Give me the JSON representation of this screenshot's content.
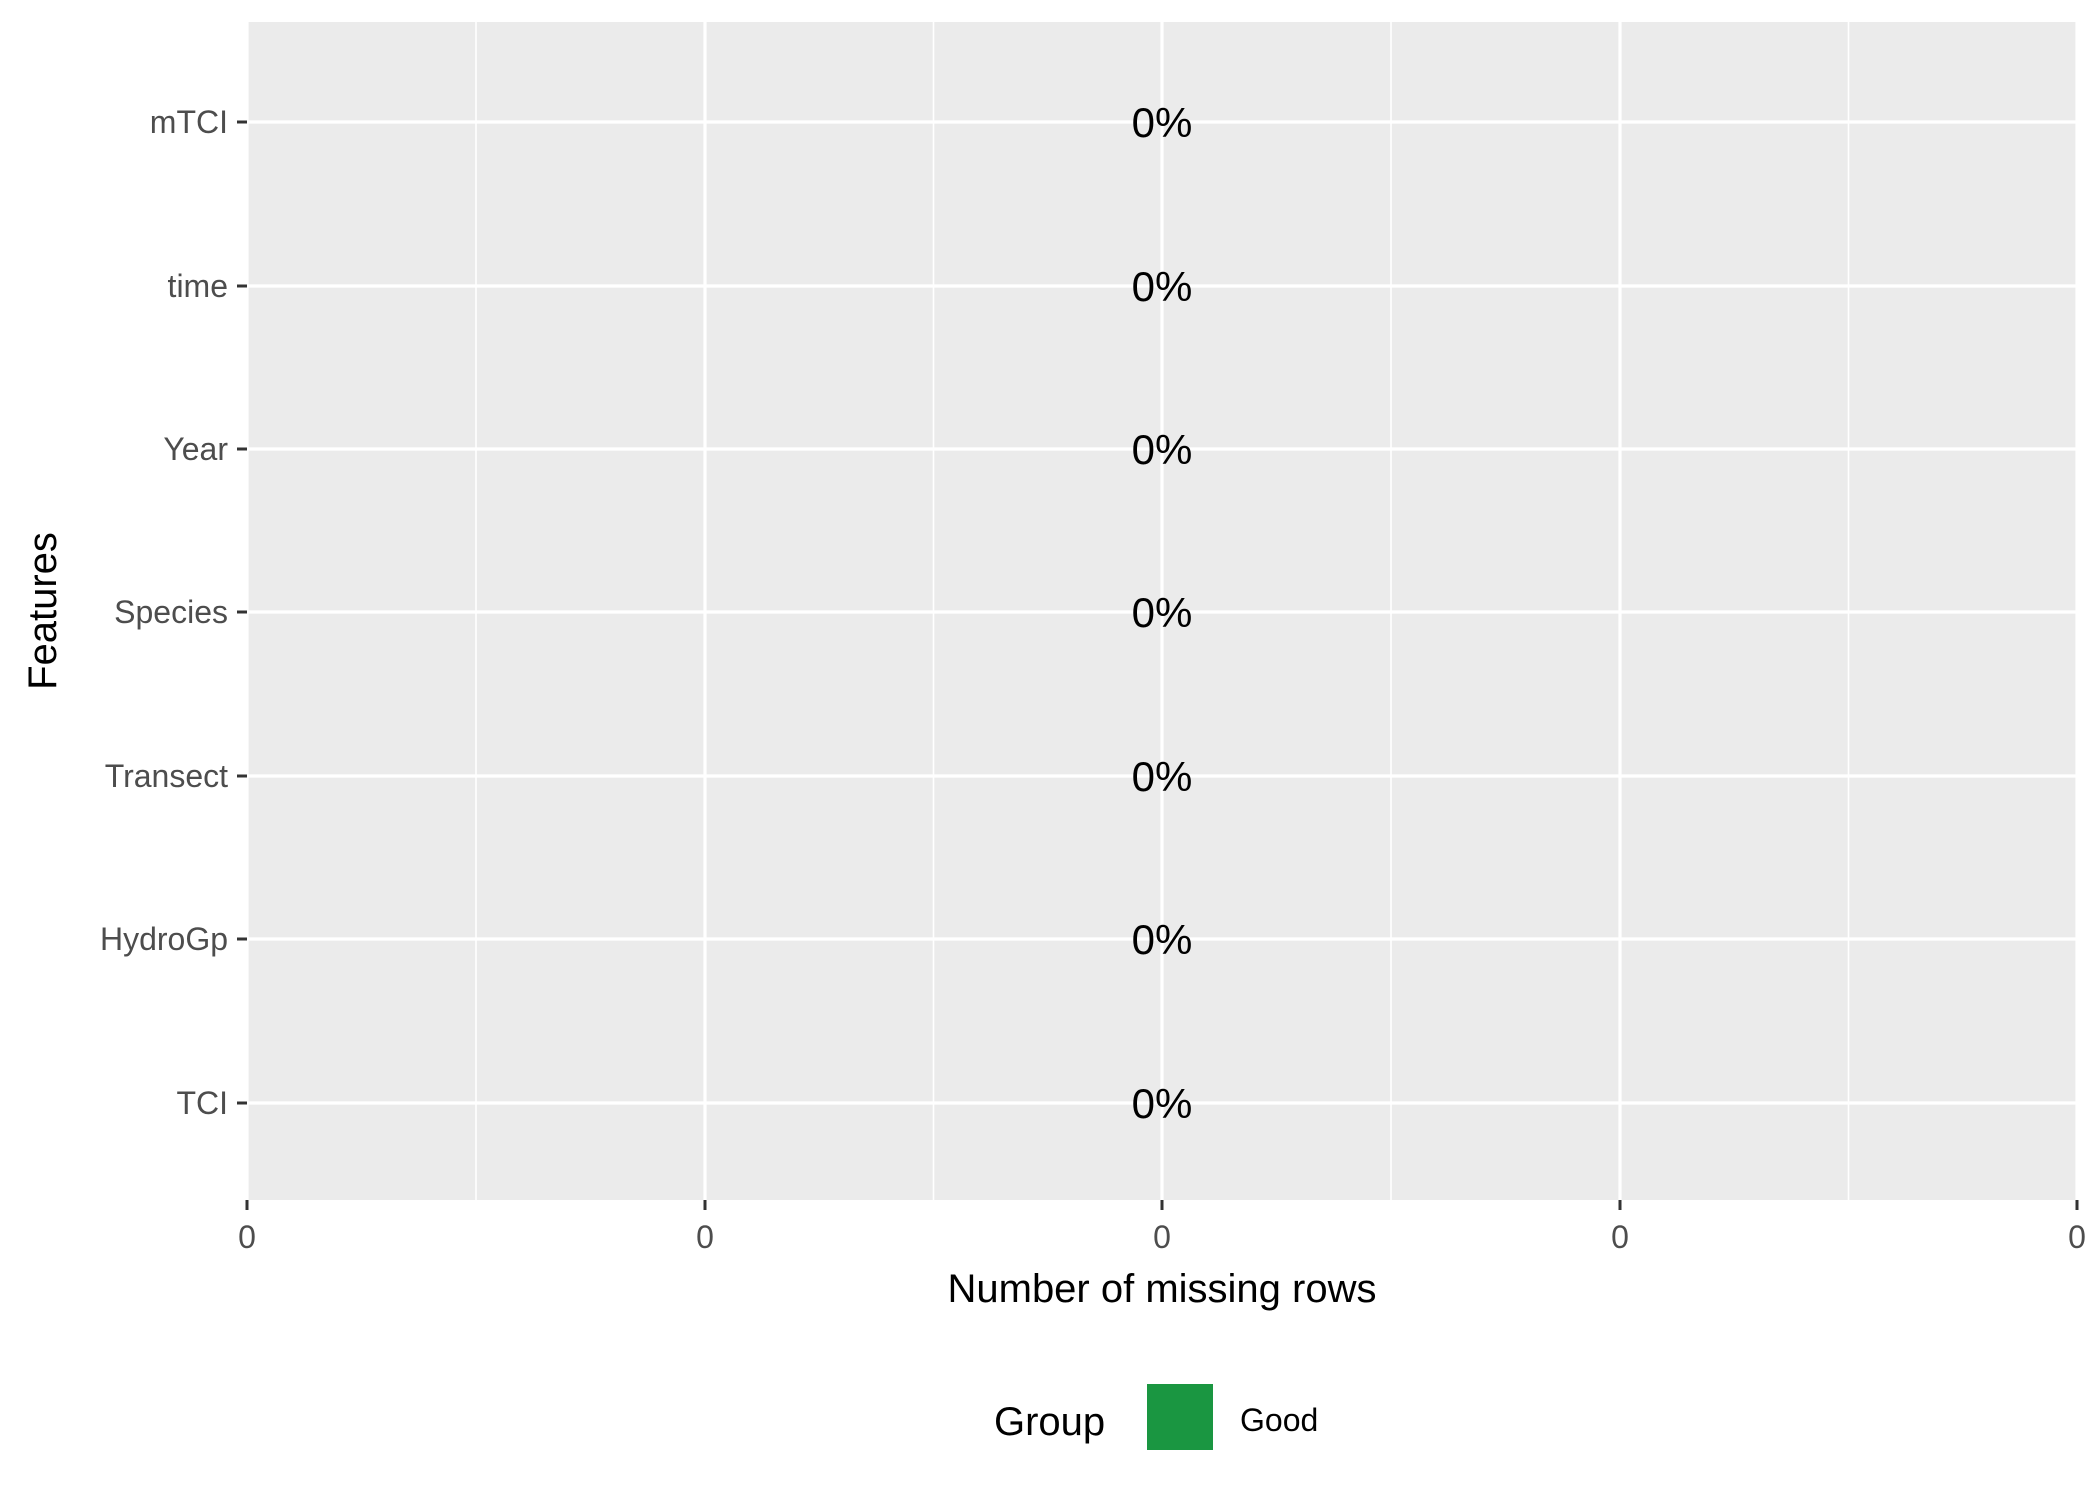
{
  "chart_data": {
    "type": "bar",
    "orientation": "horizontal",
    "categories": [
      "mTCI",
      "time",
      "Year",
      "Species",
      "Transect",
      "HydroGp",
      "TCI"
    ],
    "values": [
      0,
      0,
      0,
      0,
      0,
      0,
      0
    ],
    "data_labels": [
      "0%",
      "0%",
      "0%",
      "0%",
      "0%",
      "0%",
      "0%"
    ],
    "groups": [
      "Good",
      "Good",
      "Good",
      "Good",
      "Good",
      "Good",
      "Good"
    ],
    "xlabel": "Number of missing rows",
    "ylabel": "Features",
    "x_tick_labels": [
      "0",
      "0",
      "0",
      "0",
      "0"
    ],
    "xlim": [
      -0.05,
      0.05
    ],
    "grid": true,
    "legend": {
      "title": "Group",
      "position": "bottom",
      "entries": [
        {
          "label": "Good",
          "color": "#1a9641"
        }
      ]
    }
  },
  "colors": {
    "panel_background": "#ebebeb",
    "grid": "#ffffff",
    "good": "#1a9641"
  }
}
